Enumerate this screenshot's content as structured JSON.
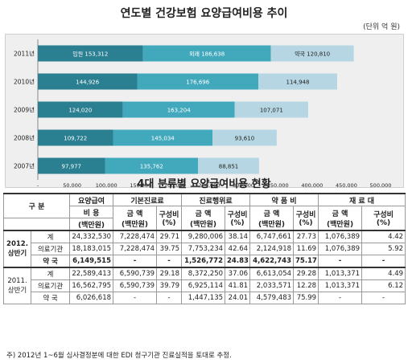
{
  "title": "연도별 건강보험 요양급여비용 추이",
  "unit": "(단위 억 원)",
  "chart_data": {
    "type": "bar",
    "orientation": "horizontal",
    "stacked": true,
    "categories": [
      "2011년",
      "2010년",
      "2009년",
      "2008년",
      "2007년"
    ],
    "series": [
      {
        "name": "입원",
        "label_text": "입원 153,312",
        "values": [
          153312,
          144926,
          124020,
          109722,
          97977
        ],
        "labels": [
          "입원 153,312",
          "144,926",
          "124,020",
          "109,722",
          "97,977"
        ],
        "color": "#2a7f90"
      },
      {
        "name": "외래",
        "label_text": "외래 186,638",
        "values": [
          186638,
          176696,
          163204,
          145034,
          135762
        ],
        "labels": [
          "외래 186,638",
          "176,696",
          "163,204",
          "145,034",
          "135,762"
        ],
        "color": "#42a9bd"
      },
      {
        "name": "약국",
        "label_text": "약국 120,810",
        "values": [
          120810,
          114948,
          107071,
          93610,
          88851
        ],
        "labels": [
          "약국 120,810",
          "114,948",
          "107,071",
          "93,610",
          "88,851"
        ],
        "color": "#b6d6e3"
      }
    ],
    "x_ticks": [
      "-",
      "50,000",
      "100,000",
      "150,000",
      "200,000",
      "250,000",
      "300,000",
      "350,000",
      "400,000",
      "450,000",
      "500,000"
    ],
    "xlim": [
      0,
      500000
    ],
    "grid": false
  },
  "table": {
    "title": "4대 분류별 요양급여비용 현황",
    "h_gubun": "구  분",
    "h_total": "요양급여",
    "h_total2": "비  용",
    "h_total3": "(백만원)",
    "h_g1": "기본진료료",
    "h_g2": "진료행위료",
    "h_g3": "약 품 비",
    "h_g4": "재 료 대",
    "h_amt": "금 액",
    "h_amt_unit": "(백만원)",
    "h_ratio": "구성비",
    "h_ratio_unit": "(%)",
    "period1": "2012.",
    "period1b": "상반기",
    "period2": "2011.",
    "period2b": "상반기",
    "rows": [
      {
        "label": "계",
        "total": "24,332,530",
        "a1": "7,228,474",
        "r1": "29.71",
        "a2": "9,280,006",
        "r2": "38.14",
        "a3": "6,747,661",
        "r3": "27.73",
        "a4": "1,076,389",
        "r4": "4.42"
      },
      {
        "label": "의료기관",
        "total": "18,183,015",
        "a1": "7,228,474",
        "r1": "39.75",
        "a2": "7,753,234",
        "r2": "42.64",
        "a3": "2,124,918",
        "r3": "11.69",
        "a4": "1,076,389",
        "r4": "5.92"
      },
      {
        "label": "약  국",
        "total": "6,149,515",
        "a1": "-",
        "r1": "-",
        "a2": "1,526,772",
        "r2": "24.83",
        "a3": "4,622,743",
        "r3": "75.17",
        "a4": "-",
        "r4": "-"
      },
      {
        "label": "계",
        "total": "22,589,413",
        "a1": "6,590,739",
        "r1": "29.18",
        "a2": "8,372,250",
        "r2": "37.06",
        "a3": "6,613,054",
        "r3": "29.28",
        "a4": "1,013,371",
        "r4": "4.49"
      },
      {
        "label": "의료기관",
        "total": "16,562,795",
        "a1": "6,590,739",
        "r1": "39.79",
        "a2": "6,925,114",
        "r2": "41.81",
        "a3": "2,033,571",
        "r3": "12.28",
        "a4": "1,013,371",
        "r4": "6.12"
      },
      {
        "label": "약  국",
        "total": "6,026,618",
        "a1": "-",
        "r1": "-",
        "a2": "1,447,135",
        "r2": "24.01",
        "a3": "4,579,483",
        "r3": "75.99",
        "a4": "-",
        "r4": "-"
      }
    ]
  },
  "note": "주) 2012년 1~6월 심사결정분에 대한 EDI 청구기관 진료실적을 토대로 추정."
}
